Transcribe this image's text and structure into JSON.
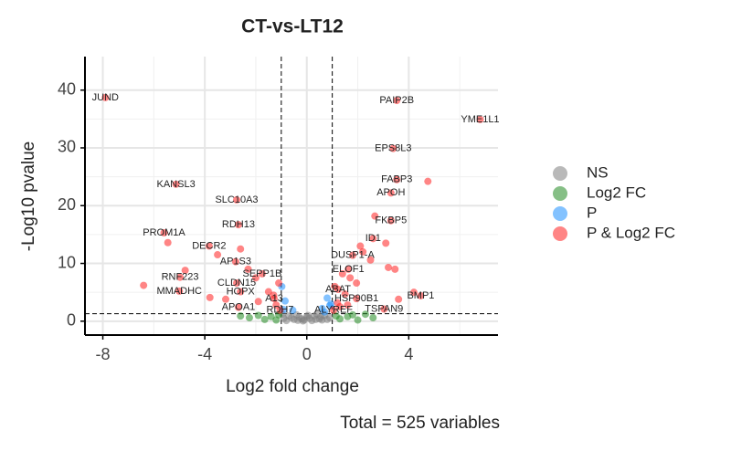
{
  "chart_data": {
    "type": "scatter",
    "title": "CT-vs-LT12",
    "x_label": "Log2 fold change",
    "y_label": "-Log10 pvalue",
    "caption": "Total = 525 variables",
    "xlim": [
      -8.7,
      7.5
    ],
    "ylim": [
      -2.4,
      45.8
    ],
    "xticks": [
      -8,
      -4,
      0,
      4
    ],
    "yticks": [
      0,
      10,
      20,
      30,
      40
    ],
    "x_minor": [
      -6,
      -2,
      2,
      6
    ],
    "y_minor": [
      5,
      15,
      25,
      35
    ],
    "fc_cutoff": [
      -1,
      1
    ],
    "p_cutoff": 1.3,
    "grid": true,
    "legend": "right",
    "point_opacity": 0.55,
    "series": [
      {
        "name": "NS",
        "color": "#7f7f7f",
        "x": [
          -0.9,
          -0.7,
          -0.5,
          -0.3,
          -0.1,
          0.1,
          0.3,
          0.5,
          0.7,
          0.9,
          -0.8,
          -0.4,
          0,
          0.2,
          0.6,
          -0.2,
          0.4,
          -0.6,
          0.8,
          -0.95,
          0.05,
          -0.15,
          0.35,
          -0.35,
          0.55
        ],
        "values": [
          0.5,
          0.9,
          0.3,
          0.7,
          0.2,
          0.5,
          0.9,
          0.4,
          1.0,
          0.6,
          0.1,
          1.1,
          0.8,
          0.1,
          0.2,
          0.4,
          1.2,
          0.6,
          0.3,
          1.2,
          1.0,
          0.05,
          0.3,
          0.15,
          0.75
        ]
      },
      {
        "name": "Log2 FC",
        "color": "#228b22",
        "x": [
          -1.65,
          -1.4,
          -2.25,
          -1.2,
          -1.9,
          -1.1,
          1.6,
          2.3,
          1.3,
          1.15,
          2.0,
          1.8,
          -2.6,
          2.6
        ],
        "values": [
          0.3,
          0.8,
          0.6,
          0.2,
          1.0,
          1.1,
          0.8,
          1.2,
          0.4,
          0.9,
          0.2,
          1.1,
          0.9,
          0.6
        ]
      },
      {
        "name": "P",
        "color": "#1e90ff",
        "x": [
          -0.98,
          -0.85,
          0.8,
          0.9,
          0.6,
          -0.55,
          0.95,
          -0.9,
          0.7
        ],
        "values": [
          6.0,
          3.5,
          4.0,
          2.7,
          2.2,
          1.9,
          3.0,
          2.0,
          1.6
        ]
      },
      {
        "name": "P & Log2 FC",
        "color": "#ff2020",
        "x": [
          -7.9,
          3.53,
          6.8,
          3.39,
          -5.13,
          3.53,
          4.75,
          3.3,
          -2.75,
          3.3,
          -2.68,
          -5.6,
          -5.45,
          2.6,
          -3.83,
          1.8,
          -2.79,
          1.63,
          -1.75,
          -4.97,
          -4.77,
          -5.0,
          -2.75,
          -2.6,
          1.23,
          4.47,
          1.95,
          -1.28,
          -2.68,
          -1.05,
          1.05,
          3.03,
          -6.4,
          2.67,
          3.2,
          3.46,
          3.6,
          4.2,
          -3.18,
          -3.8,
          -1.1,
          -1.5,
          -1.9,
          1.4,
          1.5,
          1.95,
          2.1,
          2.5,
          1.6,
          1.2,
          -2.3,
          -2.0,
          -1.3,
          1.1,
          1.7,
          2.2,
          -3.5,
          -2.6,
          3.1,
          1.3,
          -1.2
        ],
        "values": [
          38.7,
          38.2,
          34.9,
          29.9,
          23.7,
          24.5,
          24.2,
          22.2,
          21.0,
          17.4,
          16.7,
          15.3,
          13.6,
          14.3,
          13.0,
          11.4,
          10.3,
          9.0,
          8.2,
          7.6,
          8.8,
          5.2,
          6.6,
          5.1,
          5.5,
          4.4,
          3.9,
          3.9,
          2.4,
          1.9,
          1.9,
          2.1,
          6.2,
          18.2,
          9.3,
          9.0,
          3.8,
          5.0,
          3.8,
          4.1,
          6.6,
          5.1,
          3.4,
          8.2,
          4.7,
          6.6,
          13.0,
          10.6,
          2.8,
          3.2,
          9.0,
          7.5,
          4.5,
          6.0,
          7.5,
          12.0,
          11.5,
          12.5,
          13.5,
          2.5,
          2.8
        ],
        "labels": [
          "JUND",
          "PAIP2B",
          "YME1L1",
          "EPS8L3",
          "KANSL3",
          "FABP3",
          null,
          "APOH",
          "SLC10A3",
          "FKBP5",
          "RDH13",
          "PROM1A",
          null,
          "ID1",
          "DECR2",
          "DUSP1-A",
          "AP1S3",
          "ELOF1",
          "SEPP1B",
          "RNF223",
          null,
          "MMADHC",
          "CLDN15",
          "HOPX",
          "ABAT",
          "BMP1",
          "HSP90B1",
          "A13",
          "APOA1",
          "RDH7",
          "ALYREF",
          "TSPAN9",
          null,
          null,
          null,
          null,
          null,
          null,
          null,
          null,
          null,
          null,
          null,
          null,
          null,
          null,
          null,
          null,
          null,
          null,
          null,
          null,
          null,
          null,
          null,
          null,
          null,
          null,
          null,
          null,
          null
        ]
      }
    ]
  }
}
